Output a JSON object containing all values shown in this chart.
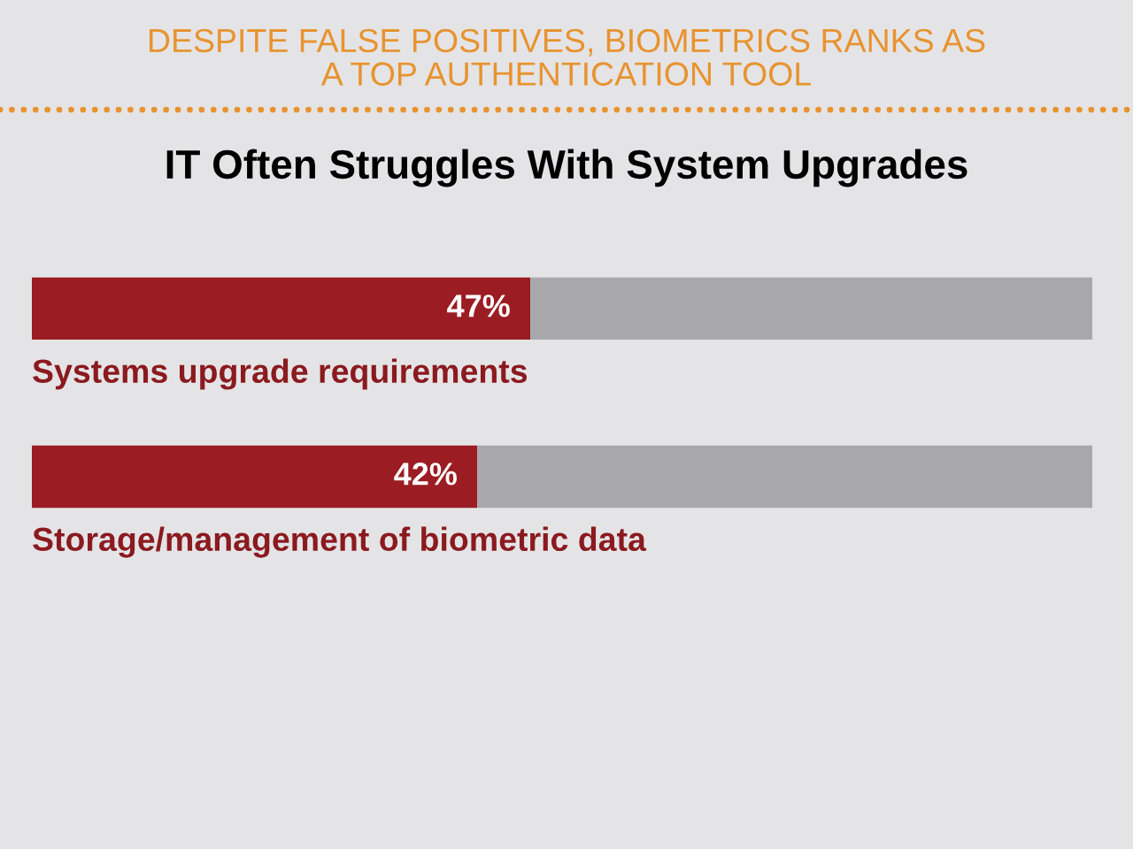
{
  "chart_data": {
    "type": "bar",
    "orientation": "horizontal",
    "stacked": true,
    "title": "DESPITE FALSE POSITIVES, BIOMETRICS RANKS AS\nA TOP AUTHENTICATION TOOL",
    "subtitle": "IT Often Struggles With System Upgrades",
    "categories": [
      "Systems upgrade requirements",
      "Storage/management of biometric data"
    ],
    "series": [
      {
        "color": "#9b1c22",
        "values": [
          47,
          42
        ],
        "value_labels": [
          "47%",
          "42%"
        ]
      },
      {
        "color": "#a8a7ac",
        "values": [
          53,
          58
        ]
      }
    ],
    "xlim": [
      0,
      100
    ],
    "tick_labels": "y"
  }
}
